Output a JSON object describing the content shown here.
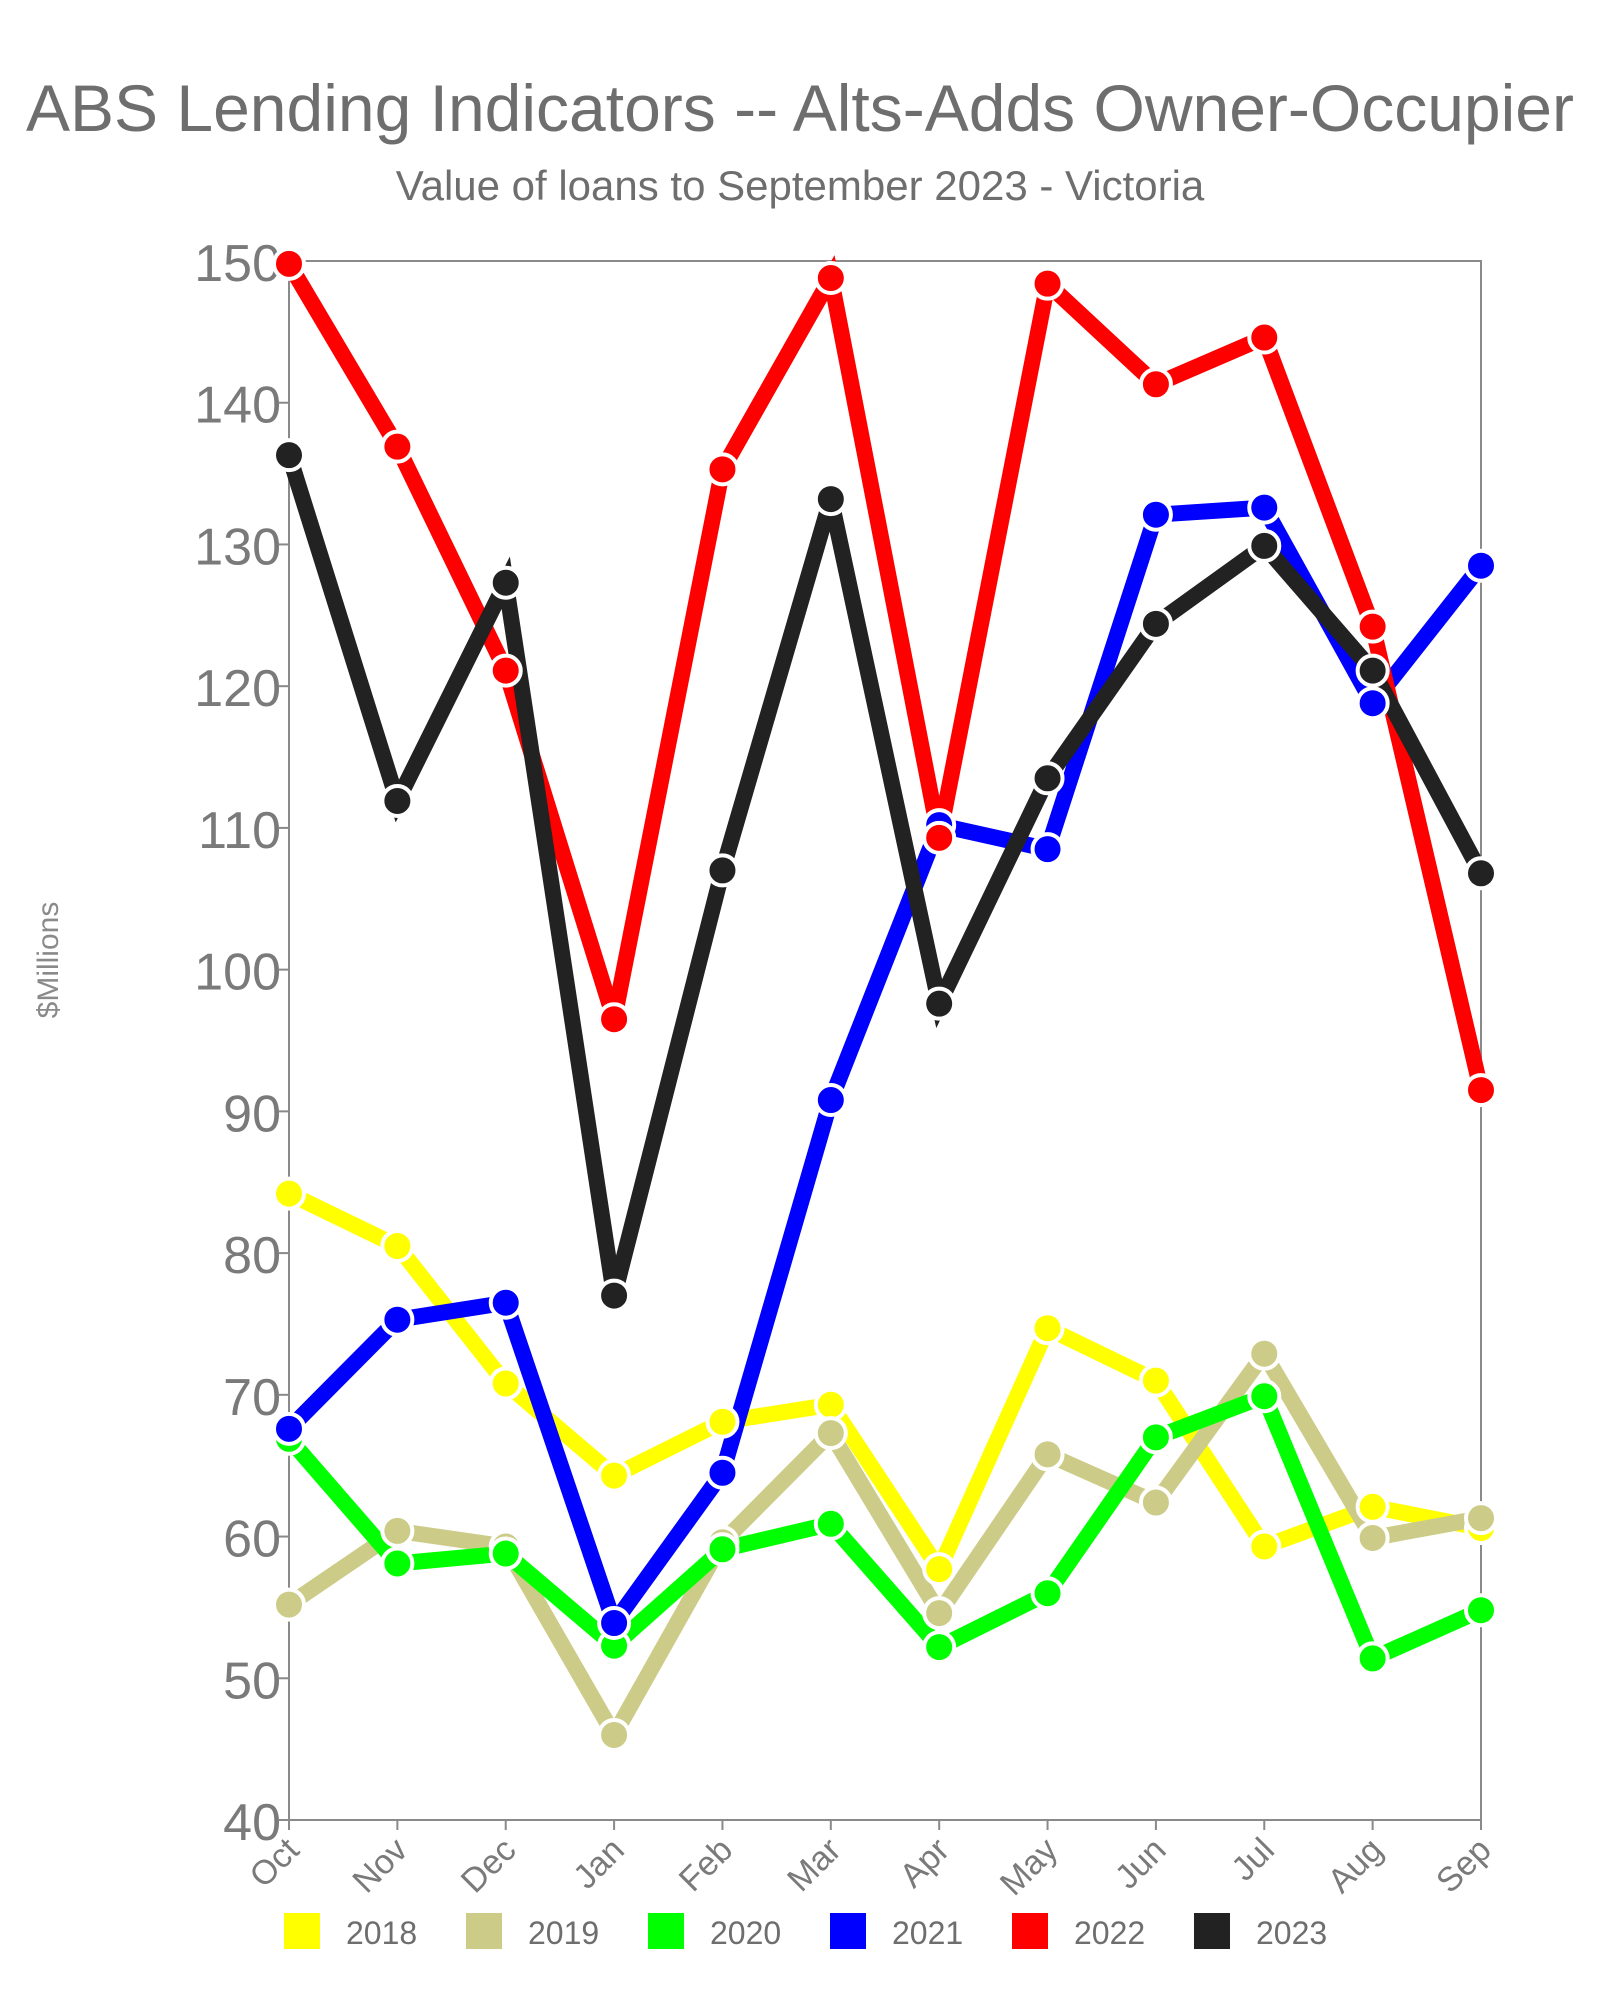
{
  "chart_data": {
    "type": "line",
    "title": "ABS Lending Indicators -- Alts-Adds Owner-Occupier",
    "subtitle": "Value of loans to September 2023 - Victoria",
    "xlabel": "",
    "ylabel": "$Millions",
    "ylim": [
      40,
      150
    ],
    "yticks": [
      40,
      50,
      60,
      70,
      80,
      90,
      100,
      110,
      120,
      130,
      140,
      150
    ],
    "categories": [
      "Oct",
      "Nov",
      "Dec",
      "Jan",
      "Feb",
      "Mar",
      "Apr",
      "May",
      "Jun",
      "Jul",
      "Aug",
      "Sep"
    ],
    "grid": false,
    "legend_position": "bottom",
    "series": [
      {
        "name": "2018",
        "color": "#ffff00",
        "values": [
          84.2,
          80.5,
          70.8,
          64.3,
          68.1,
          69.3,
          57.7,
          74.7,
          71.0,
          59.3,
          62.1,
          60.6
        ]
      },
      {
        "name": "2019",
        "color": "#cccc88",
        "values": [
          55.2,
          60.4,
          59.3,
          46.0,
          59.6,
          67.3,
          54.6,
          65.8,
          62.4,
          72.9,
          59.9,
          61.3
        ]
      },
      {
        "name": "2020",
        "color": "#00ff00",
        "values": [
          66.9,
          58.1,
          58.8,
          52.3,
          59.1,
          60.9,
          52.2,
          56.0,
          67.0,
          69.9,
          51.4,
          54.8
        ]
      },
      {
        "name": "2021",
        "color": "#0000ff",
        "values": [
          67.6,
          75.3,
          76.5,
          53.9,
          64.5,
          90.8,
          110.2,
          108.5,
          132.1,
          132.6,
          118.8,
          128.5
        ]
      },
      {
        "name": "2022",
        "color": "#ff0000",
        "values": [
          149.8,
          136.9,
          121.1,
          96.5,
          135.3,
          148.8,
          109.3,
          148.4,
          141.3,
          144.6,
          124.2,
          91.5
        ]
      },
      {
        "name": "2023",
        "color": "#222222",
        "values": [
          136.3,
          111.9,
          127.3,
          77.0,
          107.0,
          133.2,
          97.6,
          113.5,
          124.4,
          129.9,
          121.1,
          106.8
        ]
      }
    ]
  }
}
